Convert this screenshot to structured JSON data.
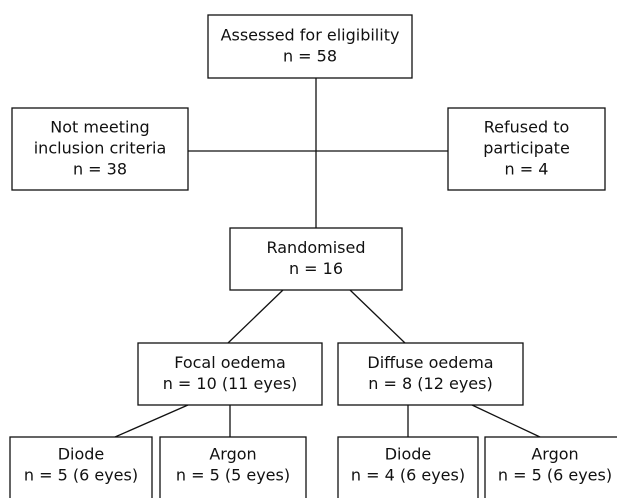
{
  "nodes": [
    {
      "lines": [
        "Assessed for eligibility",
        "n = 58"
      ]
    },
    {
      "lines": [
        "Not meeting",
        "inclusion criteria",
        "n = 38"
      ]
    },
    {
      "lines": [
        "Refused to",
        "participate",
        "n = 4"
      ]
    },
    {
      "lines": [
        "Randomised",
        "n = 16"
      ]
    },
    {
      "lines": [
        "Focal oedema",
        "n = 10 (11 eyes)"
      ]
    },
    {
      "lines": [
        "Diffuse oedema",
        "n = 8 (12 eyes)"
      ]
    },
    {
      "lines": [
        "Diode",
        "n = 5 (6 eyes)"
      ]
    },
    {
      "lines": [
        "Argon",
        "n = 5 (5 eyes)"
      ]
    },
    {
      "lines": [
        "Diode",
        "n = 4 (6 eyes)"
      ]
    },
    {
      "lines": [
        "Argon",
        "n = 5 (6 eyes)"
      ]
    }
  ]
}
